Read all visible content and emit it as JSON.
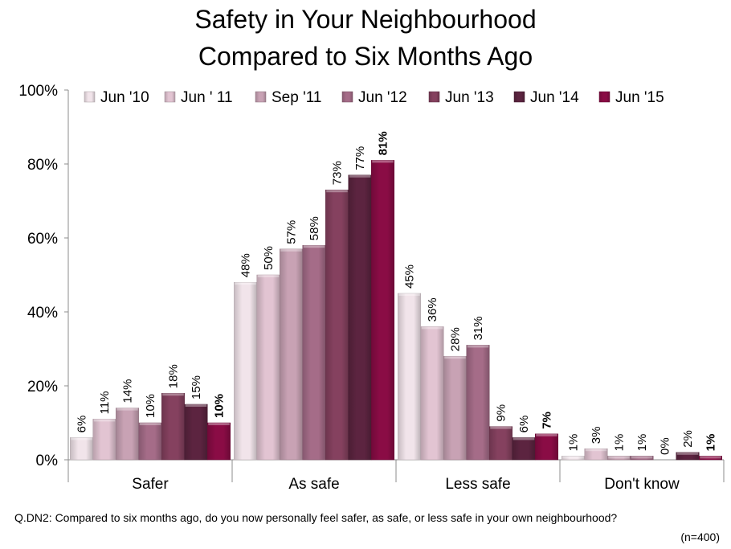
{
  "chart_data": {
    "type": "bar",
    "title_lines": [
      "Safety in Your Neighbourhood",
      "Compared to Six Months Ago"
    ],
    "categories": [
      "Safer",
      "As safe",
      "Less safe",
      "Don't know"
    ],
    "series": [
      {
        "name": "Jun '10",
        "values": [
          6,
          48,
          45,
          1
        ],
        "color": "#f1e4ea"
      },
      {
        "name": "Jun ' 11",
        "values": [
          11,
          50,
          36,
          3
        ],
        "color": "#e2c4d2"
      },
      {
        "name": "Sep '11",
        "values": [
          14,
          57,
          28,
          1
        ],
        "color": "#c8a2b4"
      },
      {
        "name": "Jun '12",
        "values": [
          10,
          58,
          31,
          1
        ],
        "color": "#a56c88"
      },
      {
        "name": "Jun '13",
        "values": [
          18,
          73,
          9,
          0
        ],
        "color": "#85415f"
      },
      {
        "name": "Jun '14",
        "values": [
          15,
          77,
          6,
          2
        ],
        "color": "#5c2440"
      },
      {
        "name": "Jun '15",
        "values": [
          10,
          81,
          7,
          1
        ],
        "color": "#8a0c45"
      }
    ],
    "data_labels": [
      [
        "6%",
        "48%",
        "45%",
        "1%"
      ],
      [
        "11%",
        "50%",
        "36%",
        "3%"
      ],
      [
        "14%",
        "57%",
        "28%",
        "1%"
      ],
      [
        "10%",
        "58%",
        "31%",
        "1%"
      ],
      [
        "18%",
        "73%",
        "9%",
        "0%"
      ],
      [
        "15%",
        "77%",
        "6%",
        "2%"
      ],
      [
        "10%",
        "81%",
        "7%",
        "1%"
      ]
    ],
    "bold_series": "Jun '15",
    "yticks": [
      "0%",
      "20%",
      "40%",
      "60%",
      "80%",
      "100%"
    ],
    "ylim": [
      0,
      100
    ],
    "grid": false,
    "legend_position": "top"
  },
  "footnote": {
    "question": "Q.DN2: Compared to six months ago, do you now personally feel safer, as safe, or less safe in your own neighbourhood?",
    "sample": "(n=400)"
  }
}
